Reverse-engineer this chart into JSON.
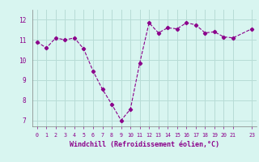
{
  "x": [
    0,
    1,
    2,
    3,
    4,
    5,
    6,
    7,
    8,
    9,
    10,
    11,
    12,
    13,
    14,
    15,
    16,
    17,
    18,
    19,
    20,
    21,
    23
  ],
  "y": [
    10.9,
    10.6,
    11.1,
    11.0,
    11.1,
    10.55,
    9.45,
    8.55,
    7.8,
    7.0,
    7.55,
    9.85,
    11.85,
    11.35,
    11.6,
    11.55,
    11.85,
    11.75,
    11.35,
    11.4,
    11.15,
    11.1,
    11.55
  ],
  "line_color": "#8B008B",
  "marker": "D",
  "markersize": 2.2,
  "linewidth": 0.8,
  "background_color": "#d8f5f0",
  "grid_color": "#b8dcd6",
  "xlabel": "Windchill (Refroidissement éolien,°C)",
  "xlabel_color": "#8B008B",
  "ylabel_ticks": [
    7,
    8,
    9,
    10,
    11,
    12
  ],
  "xlim": [
    -0.5,
    23.5
  ],
  "ylim": [
    6.7,
    12.5
  ],
  "tick_color": "#8B008B",
  "tick_fontsize": 4.8,
  "xlabel_fontsize": 6.0
}
